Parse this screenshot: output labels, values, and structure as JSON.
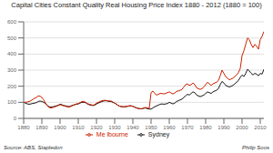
{
  "chart_data": {
    "type": "line",
    "title": "Capital Cities Constant Quality Real Housing Price Index 1880 - 2012 (1880 = 100)",
    "annotations": [
      "Source: ABS, Stapledon",
      "Philip Soos"
    ],
    "x": [
      1880,
      1881,
      1882,
      1883,
      1884,
      1885,
      1886,
      1887,
      1888,
      1889,
      1890,
      1891,
      1892,
      1893,
      1894,
      1895,
      1896,
      1897,
      1898,
      1899,
      1900,
      1901,
      1902,
      1903,
      1904,
      1905,
      1906,
      1907,
      1908,
      1909,
      1910,
      1911,
      1912,
      1913,
      1914,
      1915,
      1916,
      1917,
      1918,
      1919,
      1920,
      1921,
      1922,
      1923,
      1924,
      1925,
      1926,
      1927,
      1928,
      1929,
      1930,
      1931,
      1932,
      1933,
      1934,
      1935,
      1936,
      1937,
      1938,
      1939,
      1940,
      1941,
      1942,
      1943,
      1944,
      1945,
      1946,
      1947,
      1948,
      1949,
      1950,
      1951,
      1952,
      1953,
      1954,
      1955,
      1956,
      1957,
      1958,
      1959,
      1960,
      1961,
      1962,
      1963,
      1964,
      1965,
      1966,
      1967,
      1968,
      1969,
      1970,
      1971,
      1972,
      1973,
      1974,
      1975,
      1976,
      1977,
      1978,
      1979,
      1980,
      1981,
      1982,
      1983,
      1984,
      1985,
      1986,
      1987,
      1988,
      1989,
      1990,
      1991,
      1992,
      1993,
      1994,
      1995,
      1996,
      1997,
      1998,
      1999,
      2000,
      2001,
      2002,
      2003,
      2004,
      2005,
      2006,
      2007,
      2008,
      2009,
      2010,
      2011,
      2012
    ],
    "series": [
      {
        "name": "Sydney",
        "color": "#1a1a1a",
        "values": [
          100,
          95,
          90,
          88,
          90,
          93,
          95,
          98,
          105,
          108,
          105,
          100,
          92,
          80,
          72,
          70,
          72,
          75,
          78,
          82,
          88,
          85,
          80,
          78,
          75,
          73,
          78,
          82,
          85,
          88,
          90,
          95,
          100,
          100,
          98,
          90,
          85,
          82,
          80,
          82,
          90,
          95,
          100,
          105,
          108,
          110,
          108,
          105,
          105,
          100,
          95,
          88,
          80,
          75,
          73,
          72,
          73,
          75,
          78,
          78,
          75,
          70,
          65,
          62,
          60,
          60,
          63,
          65,
          60,
          58,
          58,
          65,
          72,
          78,
          82,
          88,
          90,
          88,
          90,
          92,
          100,
          95,
          90,
          95,
          105,
          110,
          115,
          120,
          130,
          140,
          150,
          145,
          155,
          165,
          160,
          145,
          140,
          135,
          140,
          145,
          155,
          165,
          160,
          155,
          165,
          170,
          175,
          185,
          210,
          230,
          220,
          205,
          200,
          195,
          200,
          205,
          215,
          225,
          235,
          255,
          270,
          260,
          280,
          305,
          295,
          280,
          270,
          280,
          275,
          265,
          280,
          275,
          305
        ]
      },
      {
        "name": "Me lbourne",
        "color": "#cc2200",
        "values": [
          100,
          100,
          102,
          105,
          110,
          118,
          125,
          130,
          140,
          138,
          130,
          115,
          95,
          78,
          68,
          65,
          68,
          72,
          75,
          80,
          85,
          82,
          78,
          75,
          72,
          70,
          75,
          80,
          85,
          90,
          92,
          98,
          105,
          105,
          100,
          92,
          88,
          85,
          82,
          85,
          95,
          100,
          105,
          110,
          112,
          112,
          110,
          108,
          108,
          102,
          95,
          88,
          80,
          75,
          73,
          72,
          73,
          75,
          78,
          78,
          75,
          70,
          65,
          62,
          60,
          60,
          65,
          68,
          65,
          62,
          160,
          170,
          155,
          145,
          150,
          155,
          155,
          152,
          155,
          160,
          165,
          158,
          152,
          158,
          168,
          170,
          175,
          180,
          195,
          210,
          215,
          205,
          210,
          220,
          210,
          190,
          185,
          180,
          185,
          195,
          210,
          225,
          215,
          205,
          215,
          220,
          225,
          235,
          265,
          300,
          280,
          260,
          250,
          240,
          245,
          250,
          260,
          270,
          285,
          310,
          390,
          420,
          460,
          500,
          490,
          460,
          440,
          460,
          450,
          430,
          490,
          510,
          540
        ]
      }
    ],
    "xlim": [
      1880,
      2012
    ],
    "xticks": [
      1880,
      1890,
      1900,
      1910,
      1920,
      1930,
      1940,
      1950,
      1960,
      1970,
      1980,
      1990,
      2000,
      2010
    ],
    "ylim": [
      0,
      600
    ],
    "yticks": [
      0,
      100,
      200,
      300,
      400,
      500,
      600
    ],
    "grid": true,
    "legend": "bottom"
  }
}
